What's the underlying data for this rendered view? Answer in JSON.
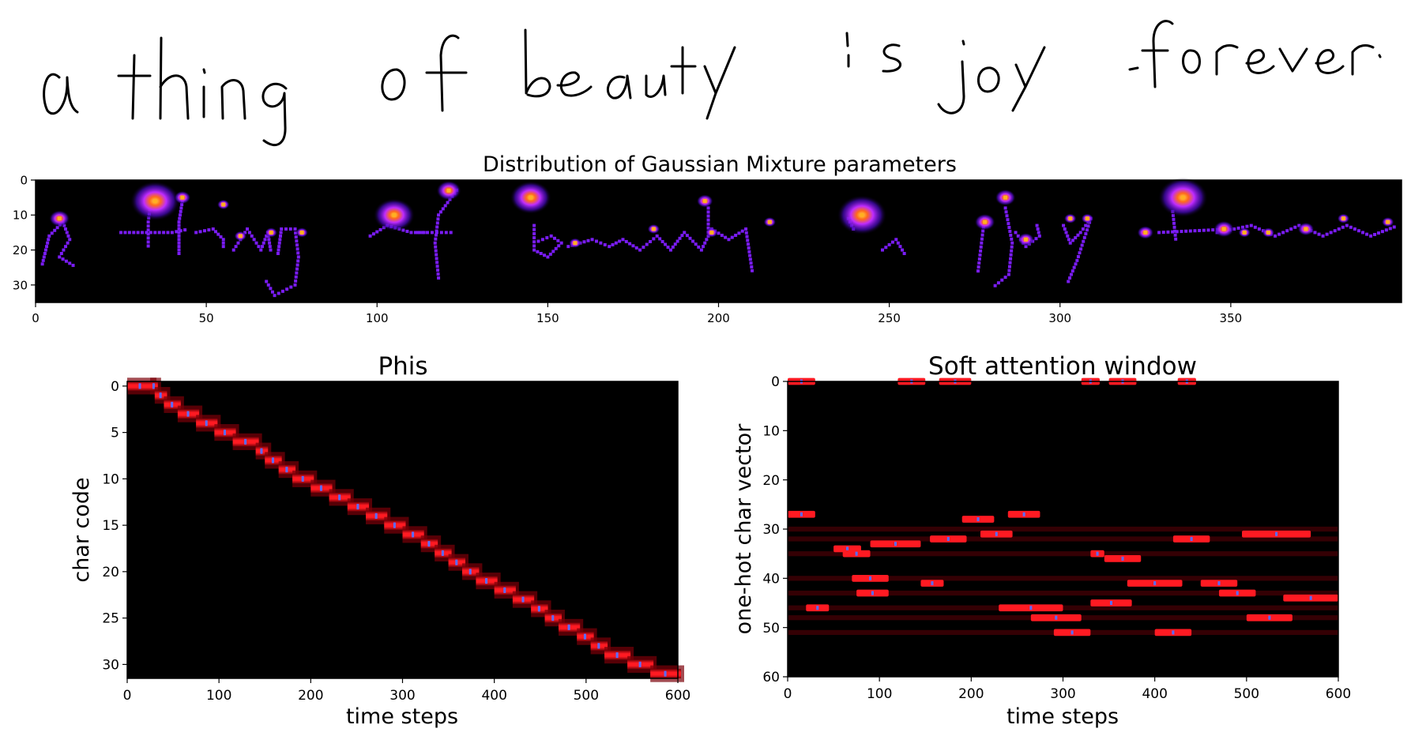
{
  "handwriting": {
    "text": "a thing of beauty is joy forever"
  },
  "chart_data": [
    {
      "type": "heatmap",
      "title": "Distribution of Gaussian Mixture parameters",
      "xlim": [
        0,
        400
      ],
      "ylim": [
        35,
        0
      ],
      "xticks": [
        "0",
        "50",
        "100",
        "150",
        "200",
        "250",
        "300",
        "350"
      ],
      "yticks": [
        "0",
        "10",
        "20",
        "30"
      ],
      "colormap": "gnuplot2",
      "colors": {
        "background": "#000000",
        "points": "#7a1cf5",
        "glow": "#b030ff",
        "core": "#ffb020"
      },
      "blobs": [
        [
          7,
          11,
          2.5
        ],
        [
          35,
          6,
          6
        ],
        [
          43,
          5,
          2
        ],
        [
          55,
          7,
          1.5
        ],
        [
          60,
          16,
          1.5
        ],
        [
          69,
          15,
          1.5
        ],
        [
          78,
          15,
          1.5
        ],
        [
          105,
          10,
          5
        ],
        [
          121,
          3,
          3
        ],
        [
          145,
          5,
          5
        ],
        [
          158,
          18,
          1.5
        ],
        [
          181,
          14,
          1.5
        ],
        [
          196,
          6,
          2
        ],
        [
          198,
          15,
          1.5
        ],
        [
          215,
          12,
          1.5
        ],
        [
          242,
          10,
          6
        ],
        [
          278,
          12,
          2.5
        ],
        [
          284,
          5,
          2.5
        ],
        [
          290,
          17,
          2
        ],
        [
          303,
          11,
          1.5
        ],
        [
          308,
          11,
          1.5
        ],
        [
          325,
          15,
          2
        ],
        [
          336,
          5,
          6
        ],
        [
          348,
          14,
          2.5
        ],
        [
          354,
          15,
          1.5
        ],
        [
          361,
          15,
          1.5
        ],
        [
          372,
          14,
          2
        ],
        [
          383,
          11,
          1.5
        ],
        [
          396,
          12,
          1.5
        ]
      ],
      "strokes": [
        [
          [
            2,
            24
          ],
          [
            4,
            16
          ],
          [
            8,
            12
          ],
          [
            10,
            17
          ],
          [
            7,
            22
          ],
          [
            12,
            25
          ]
        ],
        [
          [
            34,
            4
          ],
          [
            33,
            12
          ],
          [
            33,
            20
          ]
        ],
        [
          [
            25,
            15
          ],
          [
            40,
            15
          ],
          [
            45,
            14
          ]
        ],
        [
          [
            43,
            6
          ],
          [
            42,
            12
          ],
          [
            42,
            18
          ],
          [
            42,
            22
          ]
        ],
        [
          [
            47,
            15
          ],
          [
            52,
            14
          ],
          [
            55,
            17
          ],
          [
            55,
            20
          ]
        ],
        [
          [
            58,
            20
          ],
          [
            62,
            14
          ],
          [
            66,
            20
          ],
          [
            68,
            15
          ],
          [
            69,
            21
          ]
        ],
        [
          [
            71,
            21
          ],
          [
            72,
            14
          ],
          [
            76,
            14
          ],
          [
            77,
            22
          ],
          [
            76,
            30
          ],
          [
            70,
            33
          ],
          [
            67,
            28
          ]
        ],
        [
          [
            98,
            16
          ],
          [
            103,
            13
          ],
          [
            110,
            15
          ],
          [
            115,
            15
          ]
        ],
        [
          [
            118,
            28
          ],
          [
            117,
            18
          ],
          [
            118,
            10
          ],
          [
            124,
            2
          ]
        ],
        [
          [
            112,
            15
          ],
          [
            123,
            15
          ]
        ],
        [
          [
            146,
            13
          ],
          [
            146,
            20
          ],
          [
            150,
            22
          ],
          [
            154,
            18
          ],
          [
            151,
            16
          ],
          [
            146,
            18
          ]
        ],
        [
          [
            156,
            19
          ],
          [
            163,
            17
          ],
          [
            168,
            19
          ],
          [
            172,
            17
          ],
          [
            177,
            20
          ],
          [
            182,
            16
          ],
          [
            186,
            20
          ],
          [
            190,
            15
          ],
          [
            195,
            20
          ],
          [
            198,
            14
          ],
          [
            203,
            17
          ],
          [
            208,
            14
          ],
          [
            210,
            27
          ]
        ],
        [
          [
            197,
            8
          ],
          [
            197,
            16
          ]
        ],
        [
          [
            238,
            11
          ],
          [
            240,
            15
          ]
        ],
        [
          [
            248,
            20
          ],
          [
            252,
            17
          ],
          [
            255,
            22
          ]
        ],
        [
          [
            276,
            26
          ],
          [
            277,
            18
          ],
          [
            278,
            10
          ]
        ],
        [
          [
            284,
            8
          ],
          [
            286,
            18
          ],
          [
            285,
            27
          ],
          [
            280,
            31
          ]
        ],
        [
          [
            287,
            15
          ],
          [
            290,
            19
          ],
          [
            294,
            16
          ],
          [
            293,
            12
          ]
        ],
        [
          [
            301,
            13
          ],
          [
            303,
            18
          ],
          [
            306,
            15
          ],
          [
            309,
            11
          ],
          [
            305,
            23
          ],
          [
            302,
            30
          ]
        ],
        [
          [
            333,
            9
          ],
          [
            334,
            18
          ]
        ],
        [
          [
            329,
            15
          ],
          [
            350,
            14
          ]
        ],
        [
          [
            346,
            15
          ],
          [
            356,
            13
          ],
          [
            363,
            16
          ],
          [
            370,
            13
          ],
          [
            377,
            16
          ],
          [
            384,
            13
          ],
          [
            391,
            16
          ],
          [
            399,
            13
          ]
        ]
      ]
    },
    {
      "type": "heatmap",
      "title": "Phis",
      "xlabel": "time steps",
      "ylabel": "char code",
      "xlim": [
        0,
        600
      ],
      "ylim": [
        31.5,
        -0.5
      ],
      "xticks": [
        "0",
        "100",
        "200",
        "300",
        "400",
        "500",
        "600"
      ],
      "yticks": [
        "0",
        "5",
        "10",
        "15",
        "20",
        "25",
        "30"
      ],
      "colors": {
        "background": "#000000",
        "band": "#ff1a22",
        "center": "#5a6cff",
        "edge": "#7a0008"
      },
      "path": [
        [
          0,
          0
        ],
        [
          25,
          0
        ],
        [
          30,
          1
        ],
        [
          40,
          2
        ],
        [
          55,
          3
        ],
        [
          75,
          4
        ],
        [
          95,
          5
        ],
        [
          115,
          6
        ],
        [
          140,
          7
        ],
        [
          150,
          8
        ],
        [
          165,
          9
        ],
        [
          180,
          10
        ],
        [
          200,
          11
        ],
        [
          220,
          12
        ],
        [
          240,
          13
        ],
        [
          260,
          14
        ],
        [
          280,
          15
        ],
        [
          300,
          16
        ],
        [
          320,
          17
        ],
        [
          335,
          18
        ],
        [
          350,
          19
        ],
        [
          365,
          20
        ],
        [
          380,
          21
        ],
        [
          400,
          22
        ],
        [
          420,
          23
        ],
        [
          440,
          24
        ],
        [
          455,
          25
        ],
        [
          470,
          26
        ],
        [
          490,
          27
        ],
        [
          505,
          28
        ],
        [
          520,
          29
        ],
        [
          545,
          30
        ],
        [
          570,
          31
        ],
        [
          600,
          31
        ]
      ]
    },
    {
      "type": "heatmap",
      "title": "Soft attention window",
      "xlabel": "time steps",
      "ylabel": "one-hot char vector",
      "xlim": [
        0,
        600
      ],
      "ylim": [
        60,
        0
      ],
      "xticks": [
        "0",
        "100",
        "200",
        "300",
        "400",
        "500",
        "600"
      ],
      "yticks": [
        "0",
        "10",
        "20",
        "30",
        "40",
        "50",
        "60"
      ],
      "colors": {
        "background": "#000000",
        "segment": "#ff1a22",
        "center": "#5a6cff",
        "faint": "#3a0004"
      },
      "segments": [
        [
          0,
          30,
          0
        ],
        [
          120,
          150,
          0
        ],
        [
          165,
          200,
          0
        ],
        [
          320,
          340,
          0
        ],
        [
          350,
          380,
          0
        ],
        [
          425,
          445,
          0
        ],
        [
          0,
          30,
          27
        ],
        [
          190,
          225,
          28
        ],
        [
          240,
          275,
          27
        ],
        [
          210,
          245,
          31
        ],
        [
          155,
          195,
          32
        ],
        [
          420,
          460,
          32
        ],
        [
          495,
          570,
          31
        ],
        [
          90,
          145,
          33
        ],
        [
          50,
          80,
          34
        ],
        [
          60,
          90,
          35
        ],
        [
          330,
          345,
          35
        ],
        [
          345,
          385,
          36
        ],
        [
          70,
          110,
          40
        ],
        [
          145,
          170,
          41
        ],
        [
          370,
          430,
          41
        ],
        [
          450,
          490,
          41
        ],
        [
          75,
          110,
          43
        ],
        [
          470,
          510,
          43
        ],
        [
          540,
          600,
          44
        ],
        [
          330,
          375,
          45
        ],
        [
          20,
          45,
          46
        ],
        [
          230,
          300,
          46
        ],
        [
          265,
          320,
          48
        ],
        [
          500,
          550,
          48
        ],
        [
          290,
          330,
          51
        ],
        [
          400,
          440,
          51
        ]
      ],
      "faint_rows": [
        30,
        32,
        35,
        40,
        43,
        46,
        48,
        51
      ]
    }
  ]
}
